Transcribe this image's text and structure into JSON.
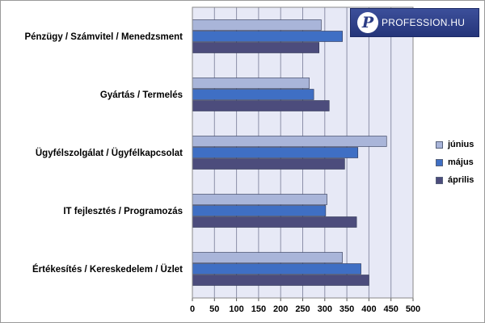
{
  "chart_data": {
    "type": "bar",
    "orientation": "horizontal",
    "categories": [
      "Pénzügy / Számvitel / Menedzsment",
      "Gyártás / Termelés",
      "Ügyfélszolgálat / Ügyfélkapcsolat",
      "IT fejlesztés / Programozás",
      "Értékesítés / Kereskedelem / Üzlet"
    ],
    "series": [
      {
        "name": "június",
        "color": "#a9b5d9",
        "values": [
          292,
          265,
          440,
          305,
          340
        ]
      },
      {
        "name": "május",
        "color": "#3f6fc4",
        "values": [
          340,
          275,
          375,
          302,
          382
        ]
      },
      {
        "name": "április",
        "color": "#4c4c7c",
        "values": [
          287,
          310,
          345,
          372,
          400
        ]
      }
    ],
    "xlim": [
      0,
      500
    ],
    "xticks": [
      0,
      50,
      100,
      150,
      200,
      250,
      300,
      350,
      400,
      450,
      500
    ],
    "grid": true,
    "legend_position": "right",
    "plot_background": "#e7e9f6"
  },
  "logo": {
    "mark": "P",
    "text": "PROFESSION.HU"
  }
}
